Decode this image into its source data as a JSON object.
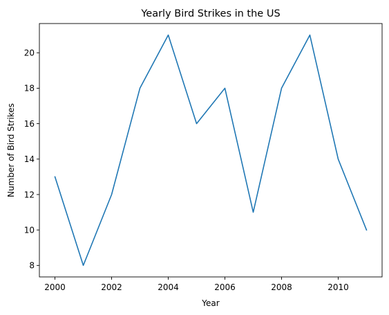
{
  "chart_data": {
    "type": "line",
    "title": "Yearly Bird Strikes in the US",
    "xlabel": "Year",
    "ylabel": "Number of Bird Strikes",
    "x": [
      2000,
      2001,
      2002,
      2003,
      2004,
      2005,
      2006,
      2007,
      2008,
      2009,
      2010,
      2011
    ],
    "y": [
      13,
      8,
      12,
      18,
      21,
      16,
      18,
      11,
      18,
      21,
      14,
      10
    ],
    "xlim": [
      1999.45,
      2011.55
    ],
    "ylim": [
      7.35,
      21.65
    ],
    "xticks": [
      2000,
      2002,
      2004,
      2006,
      2008,
      2010
    ],
    "yticks": [
      8,
      10,
      12,
      14,
      16,
      18,
      20
    ],
    "line_color": "#1f77b4",
    "grid": false,
    "legend": false
  }
}
